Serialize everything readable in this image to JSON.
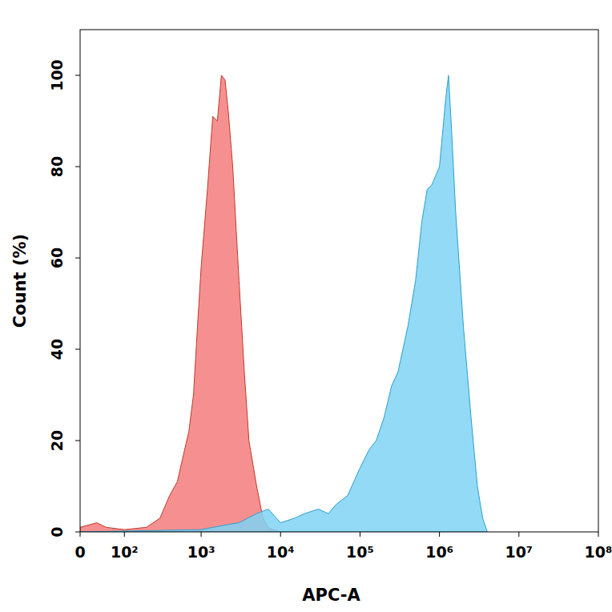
{
  "chart_data": {
    "type": "area",
    "x_label": "APC-A",
    "y_label": "Count (%)",
    "log": "x",
    "xlim": [
      0,
      100000000
    ],
    "xticks": [
      0,
      {
        "value": 100,
        "label": "10²"
      },
      {
        "value": 1000,
        "label": "10³"
      },
      {
        "value": 10000,
        "label": "10⁴"
      },
      {
        "value": 100000,
        "label": "10⁵"
      },
      {
        "value": 1000000,
        "label": "10⁶"
      },
      {
        "value": 10000000,
        "label": "10⁷"
      },
      {
        "value": 100000000,
        "label": "10⁸"
      }
    ],
    "ylim": [
      0,
      110
    ],
    "yticks": [
      0,
      20,
      40,
      60,
      80,
      100
    ],
    "grid": false,
    "series": [
      {
        "color": "#f47c7c",
        "x": [
          0,
          30,
          50,
          100,
          200,
          300,
          400,
          500,
          600,
          700,
          800,
          900,
          1000,
          1200,
          1400,
          1600,
          1800,
          2000,
          2200,
          2500,
          3000,
          3500,
          4000,
          5000,
          6000,
          7000,
          8000,
          10000
        ],
        "values": [
          1,
          2,
          1,
          0.5,
          1,
          3,
          8,
          11,
          17,
          22,
          30,
          45,
          58,
          75,
          91,
          90,
          100,
          99,
          92,
          80,
          55,
          35,
          20,
          10,
          3,
          1,
          0.5,
          0
        ]
      },
      {
        "color": "#7fd3f5",
        "x": [
          0,
          1000,
          2000,
          3000,
          5000,
          7000,
          10000,
          15000,
          20000,
          30000,
          40000,
          50000,
          70000,
          100000,
          130000,
          160000,
          200000,
          250000,
          300000,
          400000,
          500000,
          600000,
          700000,
          800000,
          1000000,
          1200000,
          1300000,
          1400000,
          1600000,
          2000000,
          2500000,
          3000000,
          3500000,
          4000000
        ],
        "values": [
          0,
          0.5,
          1.5,
          2,
          4,
          5,
          2,
          3,
          4,
          5,
          4,
          6,
          8,
          14,
          18,
          20,
          25,
          32,
          35,
          45,
          55,
          68,
          75,
          76,
          80,
          95,
          100,
          90,
          70,
          45,
          25,
          10,
          3,
          0
        ]
      }
    ]
  }
}
